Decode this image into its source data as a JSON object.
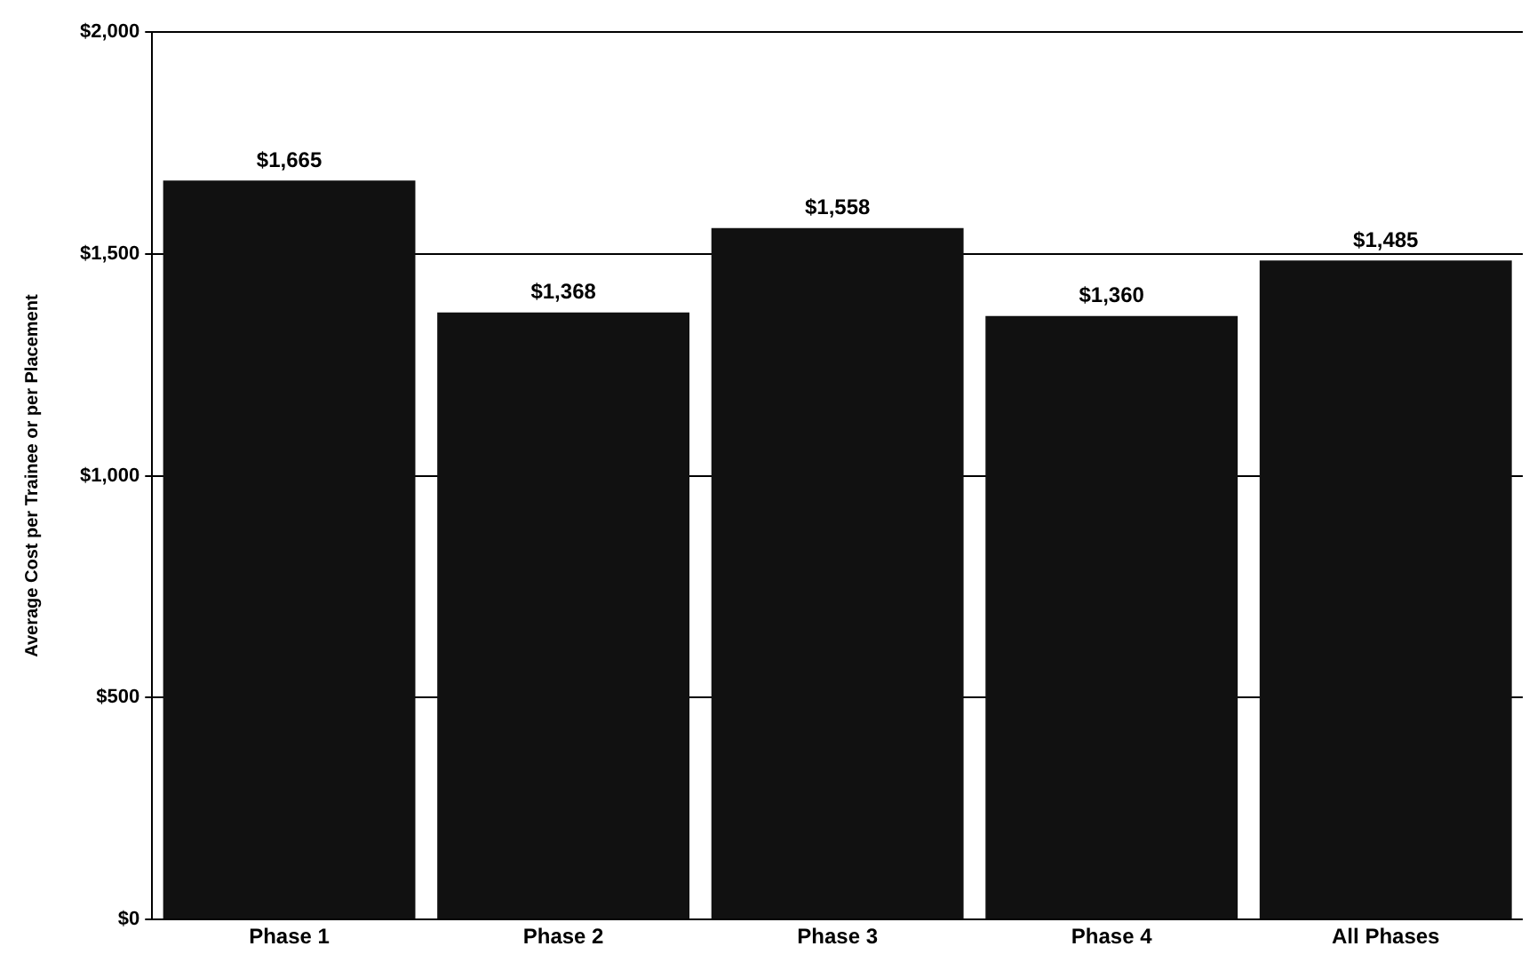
{
  "chart_data": {
    "type": "bar",
    "ylabel": "Average Cost per Trainee or per Placement",
    "categories": [
      "Phase 1",
      "Phase 2",
      "Phase 3",
      "Phase 4",
      "All Phases"
    ],
    "values": [
      1665,
      1368,
      1558,
      1360,
      1485
    ],
    "color": "#111111",
    "ylim": [
      0,
      2000
    ],
    "yticks": [
      {
        "value": 0,
        "label": "$0"
      },
      {
        "value": 500,
        "label": "$500"
      },
      {
        "value": 1000,
        "label": "$1,000"
      },
      {
        "value": 1500,
        "label": "$1,500"
      },
      {
        "value": 2000,
        "label": "$2,000"
      }
    ],
    "value_labels": [
      "$1,665",
      "$1,368",
      "$1,558",
      "$1,360",
      "$1,485"
    ],
    "grid": "y"
  }
}
